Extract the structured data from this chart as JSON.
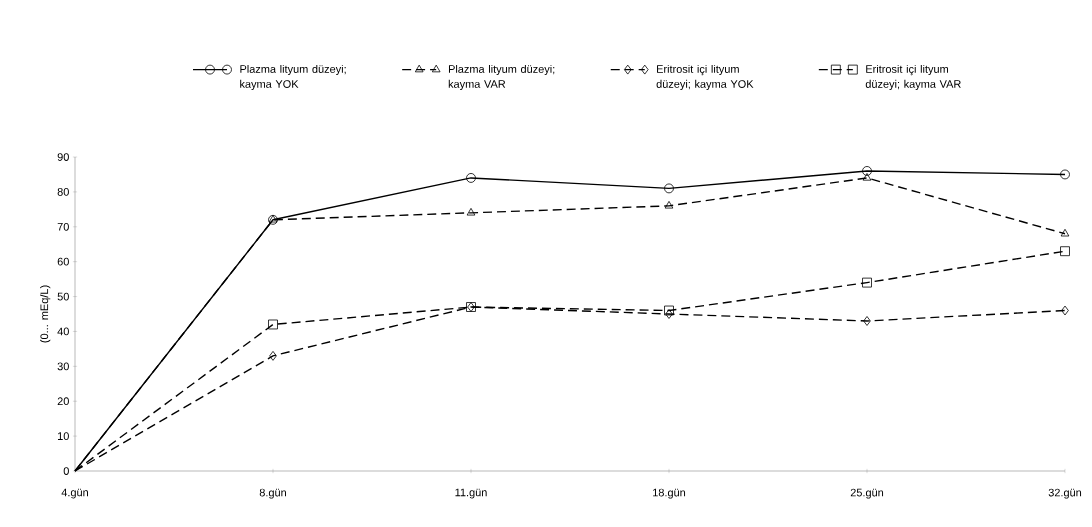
{
  "chart_data": {
    "type": "line",
    "ylabel": "(0... mEq/L)",
    "categories": [
      "4.gün",
      "8.gün",
      "11.gün",
      "18.gün",
      "25.gün",
      "32.gün"
    ],
    "series": [
      {
        "name": "Plazma lityum düzeyi; kayma YOK",
        "color": "#000000",
        "marker": "circle",
        "line_style": "solid",
        "values": [
          0,
          72,
          84,
          81,
          86,
          85
        ]
      },
      {
        "name": "Plazma lityum düzeyi; kayma VAR",
        "color": "#000000",
        "marker": "triangle",
        "line_style": "dashed",
        "values": [
          0,
          72,
          74,
          76,
          84,
          68
        ]
      },
      {
        "name": "Eritrosit içi lityum düzeyi; kayma YOK",
        "color": "#000000",
        "marker": "diamond",
        "line_style": "dashed",
        "values": [
          0,
          33,
          47,
          45,
          43,
          46
        ]
      },
      {
        "name": "Eritrosit içi lityum düzeyi; kayma VAR",
        "color": "#000000",
        "marker": "square",
        "line_style": "dashed",
        "values": [
          0,
          42,
          47,
          46,
          54,
          63
        ]
      }
    ],
    "ylim": [
      0,
      90
    ],
    "yticks": [
      0,
      10,
      20,
      30,
      40,
      50,
      60,
      70,
      80,
      90
    ],
    "grid": false,
    "legend": "top"
  }
}
